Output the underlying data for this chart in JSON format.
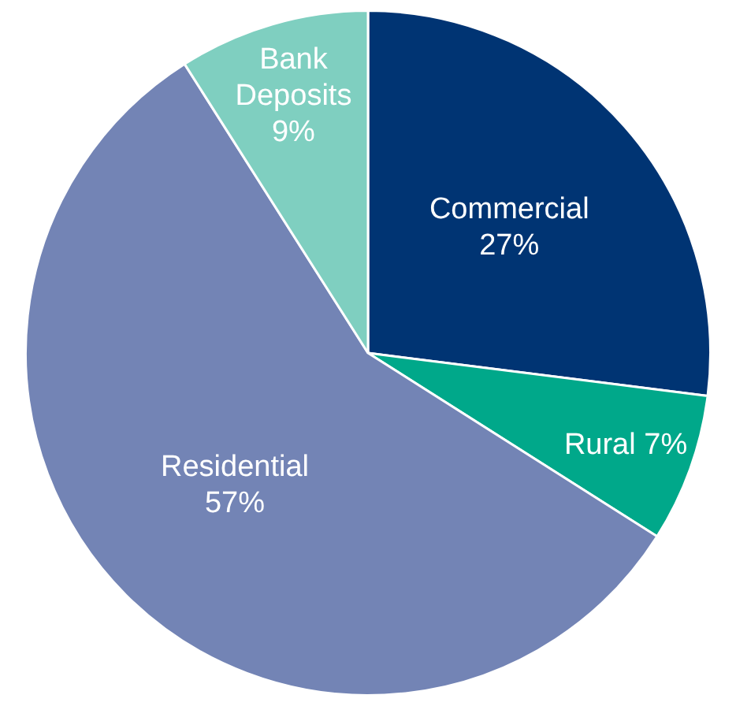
{
  "chart_data": {
    "type": "pie",
    "categories": [
      "Commercial",
      "Rural",
      "Residential",
      "Bank Deposits"
    ],
    "values": [
      27,
      7,
      57,
      9
    ],
    "colors": [
      "#003473",
      "#00a88a",
      "#7384b5",
      "#7fcfc0"
    ],
    "value_labels": [
      "27%",
      "7%",
      "57%",
      "9%"
    ],
    "legend": false
  }
}
